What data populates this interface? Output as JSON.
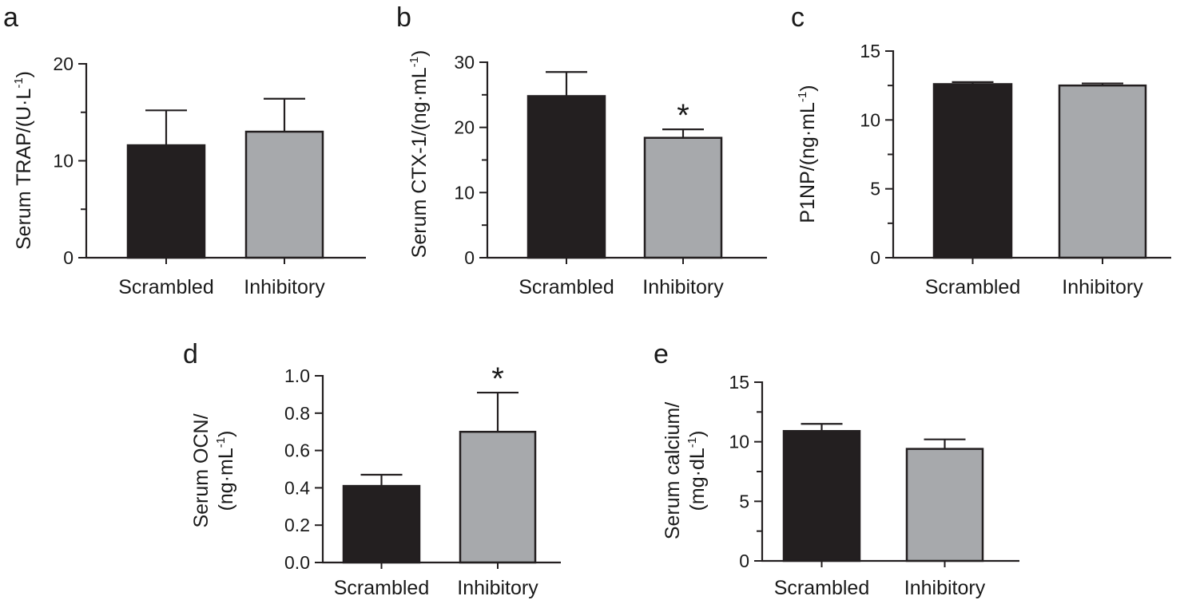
{
  "colors": {
    "scrambled": "#231f20",
    "inhibitory": "#a7a9ac",
    "axis": "#231f20",
    "background": "#ffffff"
  },
  "chart_data": [
    {
      "panel": "a",
      "type": "bar",
      "categories": [
        "Scrambled",
        "Inhibitory"
      ],
      "values": [
        11.6,
        13.0
      ],
      "errors": [
        3.6,
        3.4
      ],
      "significance": [
        "",
        ""
      ],
      "ylabel": "Serum TRAP/(U·L",
      "ylabel_sup": "-1",
      "ylabel_tail": ")",
      "ylim": [
        0,
        20
      ],
      "yticks": [
        0,
        10,
        20
      ],
      "ytick_labels": [
        "0",
        "10",
        "20"
      ]
    },
    {
      "panel": "b",
      "type": "bar",
      "categories": [
        "Scrambled",
        "Inhibitory"
      ],
      "values": [
        24.8,
        18.4
      ],
      "errors": [
        3.7,
        1.3
      ],
      "significance": [
        "",
        "*"
      ],
      "ylabel": "Serum CTX-1/(ng·mL",
      "ylabel_sup": "-1",
      "ylabel_tail": ")",
      "ylim": [
        0,
        30
      ],
      "yticks": [
        0,
        10,
        20,
        30
      ],
      "ytick_labels": [
        "0",
        "10",
        "20",
        "30"
      ]
    },
    {
      "panel": "c",
      "type": "bar",
      "categories": [
        "Scrambled",
        "Inhibitory"
      ],
      "values": [
        12.6,
        12.5
      ],
      "errors": [
        0.15,
        0.15
      ],
      "significance": [
        "",
        ""
      ],
      "ylabel": "P1NP/(ng·mL",
      "ylabel_sup": "-1",
      "ylabel_tail": ")",
      "ylim": [
        0,
        15
      ],
      "yticks": [
        0,
        5,
        10,
        15
      ],
      "ytick_labels": [
        "0",
        "5",
        "10",
        "15"
      ]
    },
    {
      "panel": "d",
      "type": "bar",
      "categories": [
        "Scrambled",
        "Inhibitory"
      ],
      "values": [
        0.41,
        0.7
      ],
      "errors": [
        0.06,
        0.21
      ],
      "significance": [
        "",
        "*"
      ],
      "ylabel_line1": "Serum OCN/",
      "ylabel": "(ng·mL",
      "ylabel_sup": "-1",
      "ylabel_tail": ")",
      "ylim": [
        0,
        1.0
      ],
      "yticks": [
        0,
        0.2,
        0.4,
        0.6,
        0.8,
        1.0
      ],
      "ytick_labels": [
        "0.0",
        "0.2",
        "0.4",
        "0.6",
        "0.8",
        "1.0"
      ]
    },
    {
      "panel": "e",
      "type": "bar",
      "categories": [
        "Scrambled",
        "Inhibitory"
      ],
      "values": [
        10.9,
        9.4
      ],
      "errors": [
        0.6,
        0.8
      ],
      "significance": [
        "",
        ""
      ],
      "ylabel_line1": "Serum calcium/",
      "ylabel": "(mg·dL",
      "ylabel_sup": "-1",
      "ylabel_tail": ")",
      "ylim": [
        0,
        15
      ],
      "yticks": [
        0,
        5,
        10,
        15
      ],
      "ytick_labels": [
        "0",
        "5",
        "10",
        "15"
      ]
    }
  ]
}
